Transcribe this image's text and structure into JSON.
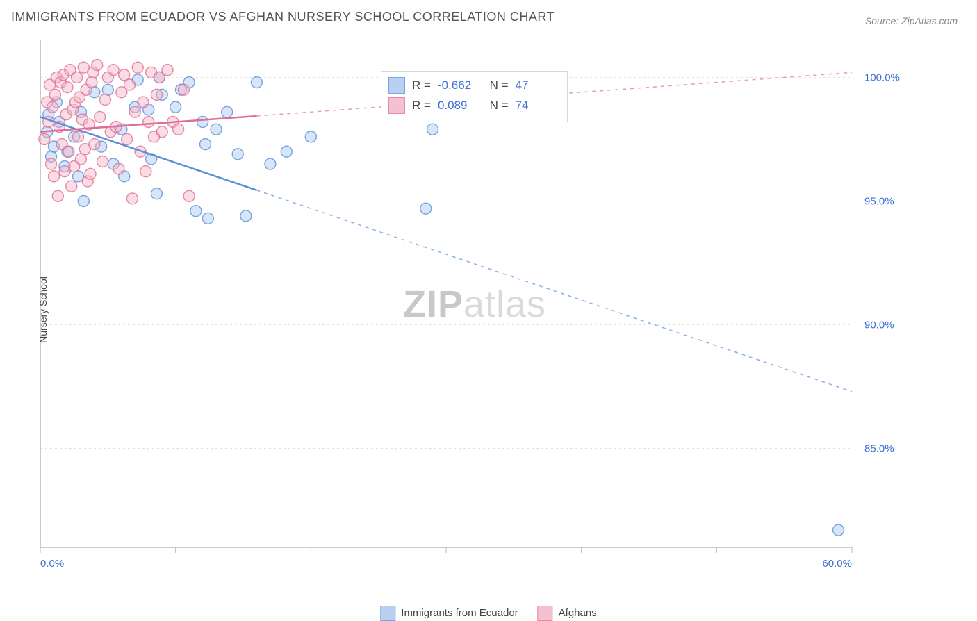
{
  "title": "IMMIGRANTS FROM ECUADOR VS AFGHAN NURSERY SCHOOL CORRELATION CHART",
  "source": "Source: ZipAtlas.com",
  "ylabel": "Nursery School",
  "watermark": {
    "bold": "ZIP",
    "light": "atlas"
  },
  "chart": {
    "type": "scatter",
    "xlim": [
      0,
      60
    ],
    "ylim": [
      81,
      101.5
    ],
    "xticks": [
      {
        "v": 0,
        "l": "0.0%"
      },
      {
        "v": 10
      },
      {
        "v": 20
      },
      {
        "v": 30
      },
      {
        "v": 40
      },
      {
        "v": 50
      },
      {
        "v": 60,
        "l": "60.0%"
      }
    ],
    "yticks": [
      {
        "v": 85,
        "l": "85.0%"
      },
      {
        "v": 90,
        "l": "90.0%"
      },
      {
        "v": 95,
        "l": "95.0%"
      },
      {
        "v": 100,
        "l": "100.0%"
      }
    ],
    "grid_color": "#e2e2e2",
    "axis_color": "#bababa",
    "tick_text_color": "#3b6fd6",
    "background_color": "#ffffff",
    "marker_size": 8,
    "marker_opacity": 0.45,
    "line_width": 2.5,
    "series": [
      {
        "key": "ecuador",
        "label": "Immigrants from Ecuador",
        "color": "#6a9ee8",
        "fill": "#a7c6f0",
        "stroke": "#5a8fd8",
        "r": -0.662,
        "n": 47,
        "trend": {
          "x1": 0,
          "y1": 98.4,
          "x2": 60,
          "y2": 87.3,
          "solid_until": 16,
          "dash_from": 16
        },
        "points": [
          [
            0.5,
            97.8
          ],
          [
            0.6,
            98.5
          ],
          [
            0.8,
            96.8
          ],
          [
            1.0,
            97.2
          ],
          [
            1.2,
            99.0
          ],
          [
            1.4,
            98.2
          ],
          [
            1.8,
            96.4
          ],
          [
            2.0,
            97.0
          ],
          [
            2.5,
            97.6
          ],
          [
            2.8,
            96.0
          ],
          [
            3.0,
            98.6
          ],
          [
            3.2,
            95.0
          ],
          [
            4.0,
            99.4
          ],
          [
            4.5,
            97.2
          ],
          [
            5.0,
            99.5
          ],
          [
            5.4,
            96.5
          ],
          [
            6.0,
            97.9
          ],
          [
            6.2,
            96.0
          ],
          [
            7.0,
            98.8
          ],
          [
            7.2,
            99.9
          ],
          [
            8.0,
            98.7
          ],
          [
            8.2,
            96.7
          ],
          [
            8.6,
            95.3
          ],
          [
            8.8,
            100.0
          ],
          [
            9.0,
            99.3
          ],
          [
            10.0,
            98.8
          ],
          [
            10.4,
            99.5
          ],
          [
            11.0,
            99.8
          ],
          [
            11.5,
            94.6
          ],
          [
            12.0,
            98.2
          ],
          [
            12.2,
            97.3
          ],
          [
            12.4,
            94.3
          ],
          [
            13.0,
            97.9
          ],
          [
            13.8,
            98.6
          ],
          [
            14.6,
            96.9
          ],
          [
            15.2,
            94.4
          ],
          [
            16.0,
            99.8
          ],
          [
            17.0,
            96.5
          ],
          [
            18.2,
            97.0
          ],
          [
            20.0,
            97.6
          ],
          [
            28.5,
            94.7
          ],
          [
            29.0,
            97.9
          ],
          [
            59.0,
            81.7
          ]
        ]
      },
      {
        "key": "afghans",
        "label": "Afghans",
        "color": "#e97fa4",
        "fill": "#f3b1c6",
        "stroke": "#e06d95",
        "r": 0.089,
        "n": 74,
        "trend": {
          "x1": 0,
          "y1": 97.8,
          "x2": 60,
          "y2": 100.2,
          "solid_until": 16,
          "dash_from": 16
        },
        "points": [
          [
            0.3,
            97.5
          ],
          [
            0.5,
            99.0
          ],
          [
            0.6,
            98.2
          ],
          [
            0.7,
            99.7
          ],
          [
            0.8,
            96.5
          ],
          [
            0.9,
            98.8
          ],
          [
            1.0,
            96.0
          ],
          [
            1.1,
            99.3
          ],
          [
            1.2,
            100.0
          ],
          [
            1.3,
            95.2
          ],
          [
            1.4,
            98.0
          ],
          [
            1.5,
            99.8
          ],
          [
            1.6,
            97.3
          ],
          [
            1.7,
            100.1
          ],
          [
            1.8,
            96.2
          ],
          [
            1.9,
            98.5
          ],
          [
            2.0,
            99.6
          ],
          [
            2.1,
            97.0
          ],
          [
            2.2,
            100.3
          ],
          [
            2.3,
            95.6
          ],
          [
            2.4,
            98.7
          ],
          [
            2.5,
            96.4
          ],
          [
            2.6,
            99.0
          ],
          [
            2.7,
            100.0
          ],
          [
            2.8,
            97.6
          ],
          [
            2.9,
            99.2
          ],
          [
            3.0,
            96.7
          ],
          [
            3.1,
            98.3
          ],
          [
            3.2,
            100.4
          ],
          [
            3.3,
            97.1
          ],
          [
            3.4,
            99.5
          ],
          [
            3.5,
            95.8
          ],
          [
            3.6,
            98.1
          ],
          [
            3.7,
            96.1
          ],
          [
            3.8,
            99.8
          ],
          [
            3.9,
            100.2
          ],
          [
            4.0,
            97.3
          ],
          [
            4.2,
            100.5
          ],
          [
            4.4,
            98.4
          ],
          [
            4.6,
            96.6
          ],
          [
            4.8,
            99.1
          ],
          [
            5.0,
            100.0
          ],
          [
            5.2,
            97.8
          ],
          [
            5.4,
            100.3
          ],
          [
            5.6,
            98.0
          ],
          [
            5.8,
            96.3
          ],
          [
            6.0,
            99.4
          ],
          [
            6.2,
            100.1
          ],
          [
            6.4,
            97.5
          ],
          [
            6.6,
            99.7
          ],
          [
            6.8,
            95.1
          ],
          [
            7.0,
            98.6
          ],
          [
            7.2,
            100.4
          ],
          [
            7.4,
            97.0
          ],
          [
            7.6,
            99.0
          ],
          [
            7.8,
            96.2
          ],
          [
            8.0,
            98.2
          ],
          [
            8.2,
            100.2
          ],
          [
            8.4,
            97.6
          ],
          [
            8.6,
            99.3
          ],
          [
            8.8,
            100.0
          ],
          [
            9.0,
            97.8
          ],
          [
            9.4,
            100.3
          ],
          [
            9.8,
            98.2
          ],
          [
            10.2,
            97.9
          ],
          [
            10.6,
            99.5
          ],
          [
            11.0,
            95.2
          ]
        ]
      }
    ]
  },
  "bottom_legend": [
    {
      "key": "ecuador",
      "label": "Immigrants from Ecuador"
    },
    {
      "key": "afghans",
      "label": "Afghans"
    }
  ]
}
